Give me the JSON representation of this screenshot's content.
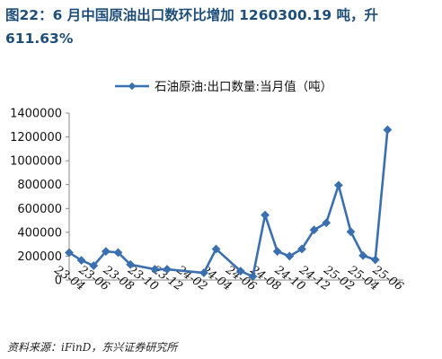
{
  "figure": {
    "title": "图22：6 月中国原油出口数环比增加 1260300.19 吨，升 611.63%",
    "source": "资料来源：iFinD，东兴证券研究所"
  },
  "colors": {
    "title": "#1f4e79",
    "series": "#3a6fb0",
    "axis": "#888888",
    "text": "#111111"
  },
  "chart_data": {
    "type": "line",
    "title": "",
    "xlabel": "",
    "ylabel": "",
    "legend_position": "top",
    "grid": false,
    "ylim": [
      0,
      1400000
    ],
    "yticks": [
      0,
      200000,
      400000,
      600000,
      800000,
      1000000,
      1200000,
      1400000
    ],
    "ytick_labels": [
      "0",
      "200000",
      "400000",
      "600000",
      "800000",
      "1000000",
      "1200000",
      "1400000"
    ],
    "xticks": [
      "23-04",
      "23-06",
      "23-08",
      "23-10",
      "23-12",
      "24-02",
      "24-04",
      "24-06",
      "24-08",
      "24-10",
      "24-12",
      "25-02",
      "25-04",
      "25-06"
    ],
    "x": [
      "23-03",
      "23-04",
      "23-05",
      "23-06",
      "23-07",
      "23-08",
      "23-10",
      "23-11",
      "24-02",
      "24-03",
      "24-05",
      "24-06",
      "24-07",
      "24-08",
      "24-09",
      "24-10",
      "24-11",
      "24-12",
      "25-01",
      "25-02",
      "25-03",
      "25-04",
      "25-05"
    ],
    "series": [
      {
        "name": "石油原油:出口数量:当月值（吨）",
        "values": [
          230000,
          165000,
          120000,
          240000,
          230000,
          130000,
          90000,
          90000,
          60000,
          260000,
          75000,
          30000,
          545000,
          240000,
          200000,
          260000,
          420000,
          480000,
          795000,
          405000,
          205000,
          170000,
          1260000
        ]
      }
    ]
  }
}
